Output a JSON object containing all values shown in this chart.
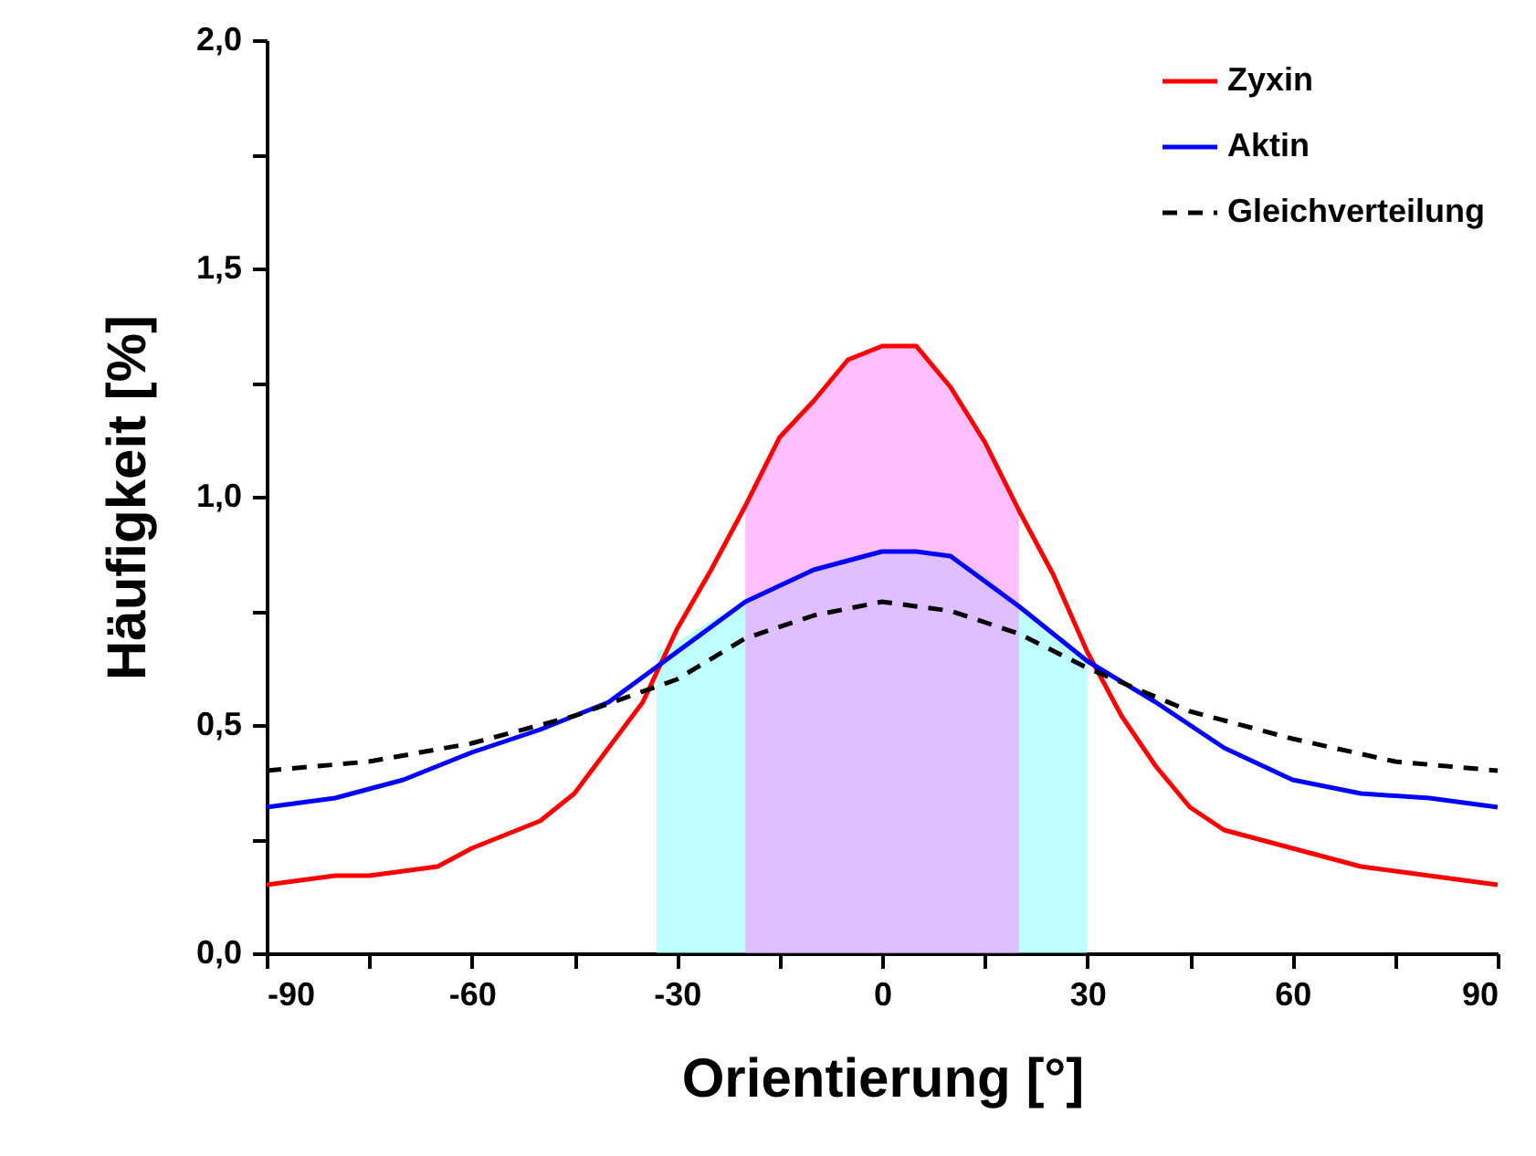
{
  "chart_data": {
    "type": "line",
    "xlabel": "Orientierung [°]",
    "ylabel": "Häufigkeit [%]",
    "xlim": [
      -90,
      90
    ],
    "ylim": [
      0,
      2
    ],
    "xticks": [
      -90,
      {
        "value": -75,
        "label": null
      },
      -60,
      {
        "value": -45,
        "label": null
      },
      -30,
      {
        "value": -15,
        "label": null
      },
      0,
      {
        "value": 15,
        "label": null
      },
      30,
      {
        "value": 45,
        "label": null
      },
      60,
      {
        "value": 75,
        "label": null
      },
      90
    ],
    "yticks": [
      {
        "value": 0,
        "label": "0,0"
      },
      {
        "value": 0.25,
        "label": null
      },
      {
        "value": 0.5,
        "label": "0,5"
      },
      {
        "value": 0.75,
        "label": null
      },
      {
        "value": 1,
        "label": "1,0"
      },
      {
        "value": 1.25,
        "label": null
      },
      {
        "value": 1.5,
        "label": "1,5"
      },
      {
        "value": 1.75,
        "label": null
      },
      {
        "value": 2,
        "label": "2,0"
      }
    ],
    "grid": false,
    "legend": "top right",
    "series": [
      {
        "type": "area",
        "color": "#80ffff",
        "x": [
          -33,
          -30,
          -25,
          -20,
          -15,
          -10,
          -5,
          0,
          5,
          10,
          15,
          20,
          25,
          30
        ],
        "values": [
          0.66,
          0.68,
          0.73,
          0.77,
          0.81,
          0.84,
          0.87,
          0.88,
          0.88,
          0.87,
          0.83,
          0.76,
          0.7,
          0.64
        ]
      },
      {
        "type": "area",
        "color": "#ff80ff",
        "x": [
          -20,
          -15,
          -10,
          -5,
          0,
          5,
          10,
          15,
          20
        ],
        "values": [
          0.98,
          1.13,
          1.21,
          1.3,
          1.33,
          1.33,
          1.24,
          1.12,
          0.97
        ]
      },
      {
        "name": "Zyxin",
        "color": "#ff0000",
        "line_style": "solid",
        "x": [
          -90,
          -85,
          -80,
          -75,
          -70,
          -65,
          -60,
          -55,
          -50,
          -45,
          -40,
          -35,
          -30,
          -25,
          -20,
          -15,
          -10,
          -5,
          0,
          5,
          10,
          15,
          20,
          25,
          30,
          35,
          40,
          45,
          50,
          55,
          60,
          65,
          70,
          75,
          80,
          85,
          90
        ],
        "values": [
          0.15,
          0.16,
          0.17,
          0.17,
          0.18,
          0.19,
          0.23,
          0.26,
          0.29,
          0.35,
          0.45,
          0.55,
          0.71,
          0.84,
          0.98,
          1.13,
          1.21,
          1.3,
          1.33,
          1.33,
          1.24,
          1.12,
          0.97,
          0.83,
          0.66,
          0.52,
          0.41,
          0.32,
          0.27,
          0.25,
          0.23,
          0.21,
          0.19,
          0.18,
          0.17,
          0.16,
          0.15
        ]
      },
      {
        "name": "Aktin",
        "color": "#0000ff",
        "line_style": "solid",
        "x": [
          -90,
          -80,
          -70,
          -60,
          -50,
          -40,
          -30,
          -20,
          -10,
          0,
          5,
          10,
          20,
          30,
          40,
          50,
          60,
          70,
          80,
          90
        ],
        "values": [
          0.32,
          0.34,
          0.38,
          0.44,
          0.49,
          0.55,
          0.66,
          0.77,
          0.84,
          0.88,
          0.88,
          0.87,
          0.76,
          0.64,
          0.55,
          0.45,
          0.38,
          0.35,
          0.34,
          0.32
        ]
      },
      {
        "name": "Gleichverteilung",
        "color": "#000000",
        "line_style": "dashed",
        "x": [
          -90,
          -75,
          -60,
          -45,
          -30,
          -20,
          -10,
          0,
          10,
          20,
          30,
          45,
          60,
          75,
          90
        ],
        "values": [
          0.4,
          0.42,
          0.46,
          0.52,
          0.6,
          0.69,
          0.74,
          0.77,
          0.75,
          0.7,
          0.625,
          0.53,
          0.47,
          0.42,
          0.4
        ]
      }
    ]
  }
}
